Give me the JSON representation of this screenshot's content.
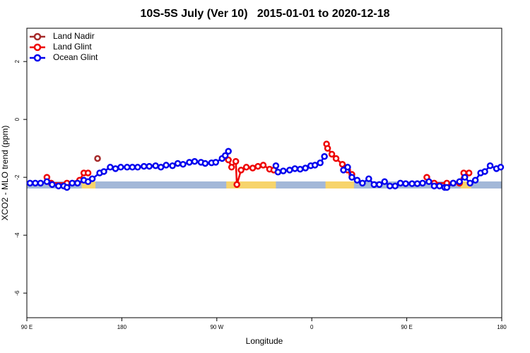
{
  "chart_data": {
    "type": "line",
    "title": "10S-5S July (Ver 10)   2015-01-01 to 2020-12-18",
    "x_label": "Longitude",
    "y_label": "XCO2 - MLO trend (ppm)",
    "xlim": [
      90,
      540
    ],
    "ylim": [
      -6.85,
      3.15
    ],
    "xticks": [
      {
        "value": 90,
        "label": "90 E"
      },
      180,
      {
        "value": 270,
        "label": "90 W"
      },
      {
        "value": 360,
        "label": "0"
      },
      {
        "value": 450,
        "label": "90 E"
      },
      {
        "value": 540,
        "label": "180"
      }
    ],
    "yticks": [
      -6,
      -4,
      -2,
      0,
      2
    ],
    "land_spans": [
      [
        142,
        155
      ],
      [
        279,
        326
      ],
      [
        373,
        400
      ],
      [
        501,
        511
      ]
    ],
    "legend": "top-left",
    "series": [
      {
        "name": "Land Nadir",
        "color": "#a52a2a",
        "x": [
          157,
          518
        ],
        "values": [
          -1.35,
          null
        ]
      },
      {
        "name": "Land Glint",
        "color": "#ee0000",
        "x": [
          109,
          113,
          128,
          140,
          144,
          148,
          200,
          281,
          284,
          288,
          289,
          293,
          298,
          304,
          309,
          314,
          320,
          324,
          340,
          374,
          375,
          379,
          383,
          389,
          394,
          398,
          430,
          469,
          476,
          488,
          494,
          500,
          504,
          509
        ],
        "values": [
          -2.0,
          -2.2,
          -2.2,
          -2.1,
          -1.85,
          -1.85,
          null,
          -1.4,
          -1.65,
          -1.45,
          -2.25,
          -1.75,
          -1.65,
          -1.68,
          -1.62,
          -1.58,
          -1.72,
          -1.75,
          null,
          -0.85,
          -1.0,
          -1.2,
          -1.35,
          -1.55,
          -1.75,
          -1.9,
          null,
          -2.0,
          -2.2,
          -2.2,
          -2.2,
          -2.2,
          -1.85,
          -1.85
        ]
      },
      {
        "name": "Ocean Glint",
        "color": "#0000ee",
        "x": [
          93,
          98,
          103,
          109,
          114,
          120,
          125,
          128,
          133,
          138,
          144,
          148,
          152,
          159,
          163,
          169,
          174,
          179,
          185,
          190,
          195,
          201,
          206,
          212,
          217,
          222,
          228,
          233,
          238,
          244,
          249,
          255,
          259,
          265,
          269,
          275,
          278,
          281,
          300,
          326,
          328,
          333,
          339,
          344,
          349,
          354,
          359,
          363,
          368,
          372,
          380,
          390,
          394,
          398,
          403,
          408,
          414,
          419,
          424,
          429,
          434,
          439,
          444,
          449,
          455,
          460,
          465,
          471,
          476,
          481,
          486,
          488,
          494,
          500,
          505,
          510,
          515,
          520,
          524,
          529,
          535,
          539
        ],
        "values": [
          -2.2,
          -2.2,
          -2.2,
          -2.15,
          -2.25,
          -2.3,
          -2.3,
          -2.35,
          -2.2,
          -2.2,
          -2.1,
          -2.15,
          -2.05,
          -1.85,
          -1.8,
          -1.65,
          -1.7,
          -1.65,
          -1.65,
          -1.65,
          -1.65,
          -1.62,
          -1.62,
          -1.6,
          -1.65,
          -1.58,
          -1.6,
          -1.52,
          -1.55,
          -1.48,
          -1.45,
          -1.48,
          -1.52,
          -1.5,
          -1.48,
          -1.35,
          -1.25,
          -1.1,
          null,
          -1.6,
          -1.82,
          -1.78,
          -1.75,
          -1.7,
          -1.72,
          -1.68,
          -1.6,
          -1.58,
          -1.5,
          -1.28,
          null,
          -1.75,
          -1.65,
          -2.0,
          -2.1,
          -2.2,
          -2.05,
          -2.25,
          -2.25,
          -2.15,
          -2.3,
          -2.3,
          -2.2,
          -2.22,
          -2.22,
          -2.22,
          -2.2,
          -2.15,
          -2.3,
          -2.3,
          -2.35,
          -2.35,
          -2.2,
          -2.15,
          -2.0,
          -2.2,
          -2.1,
          -1.85,
          -1.8,
          -1.6,
          -1.7,
          -1.65
        ]
      }
    ]
  }
}
